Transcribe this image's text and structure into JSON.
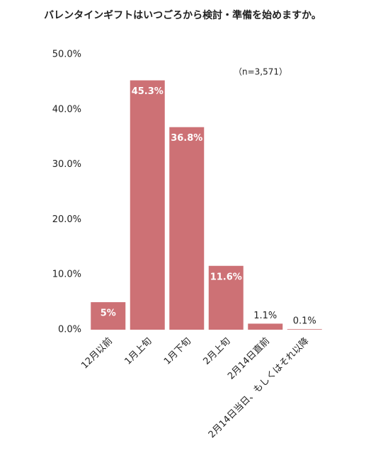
{
  "chart_data": {
    "type": "bar",
    "title": "バレンタインギフトはいつごろから検討・準備を始めますか。",
    "annotation": "（n=3,571）",
    "categories": [
      "12月以前",
      "1月上旬",
      "1月下旬",
      "2月上旬",
      "2月14日直前",
      "2月14日当日、もしくはそれ以降"
    ],
    "values": [
      5,
      45.3,
      36.8,
      11.6,
      1.1,
      0.1
    ],
    "value_labels": [
      "5%",
      "45.3%",
      "36.8%",
      "11.6%",
      "1.1%",
      "0.1%"
    ],
    "color": "#cd7175",
    "ylim": [
      0,
      50
    ],
    "yticks": [
      {
        "value": 0,
        "label": "0.0%"
      },
      {
        "value": 10,
        "label": "10.0%"
      },
      {
        "value": 20,
        "label": "20.0%"
      },
      {
        "value": 30,
        "label": "30.0%"
      },
      {
        "value": 40,
        "label": "40.0%"
      },
      {
        "value": 50,
        "label": "50.0%"
      }
    ],
    "grid": false
  }
}
